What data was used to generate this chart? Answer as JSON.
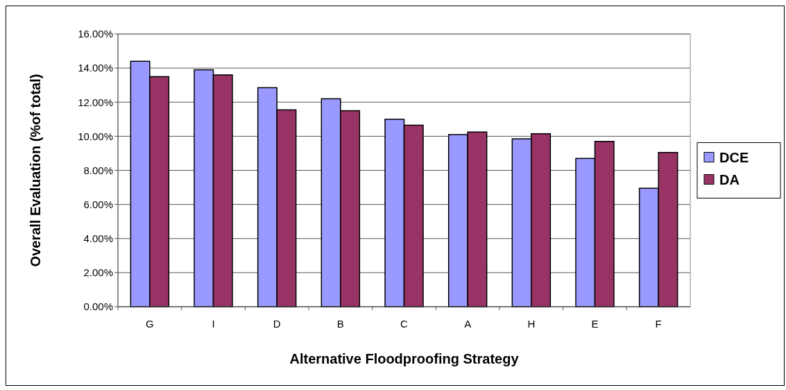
{
  "chart_data": {
    "type": "bar",
    "xlabel": "Alternative Floodproofing Strategy",
    "ylabel": "Overall Evaluation (%of total)",
    "categories": [
      "G",
      "I",
      "D",
      "B",
      "C",
      "A",
      "H",
      "E",
      "F"
    ],
    "series": [
      {
        "name": "DCE",
        "color": "#9999ff",
        "values": [
          14.4,
          13.9,
          12.85,
          12.2,
          11.0,
          10.1,
          9.85,
          8.7,
          6.95
        ]
      },
      {
        "name": "DA",
        "color": "#993366",
        "values": [
          13.5,
          13.6,
          11.55,
          11.5,
          10.65,
          10.25,
          10.15,
          9.7,
          9.05
        ]
      }
    ],
    "ylim": [
      0,
      16
    ],
    "yticks": [
      {
        "value": 0,
        "label": "0.00%"
      },
      {
        "value": 2,
        "label": "2.00%"
      },
      {
        "value": 4,
        "label": "4.00%"
      },
      {
        "value": 6,
        "label": "6.00%"
      },
      {
        "value": 8,
        "label": "8.00%"
      },
      {
        "value": 10,
        "label": "10.00%"
      },
      {
        "value": 12,
        "label": "12.00%"
      },
      {
        "value": 14,
        "label": "14.00%"
      },
      {
        "value": 16,
        "label": "16.00%"
      }
    ],
    "grid": "y",
    "legend": "right"
  }
}
